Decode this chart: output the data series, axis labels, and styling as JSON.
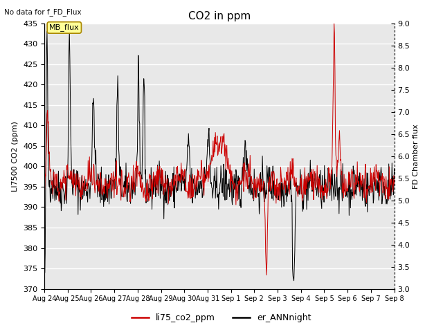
{
  "title": "CO2 in ppm",
  "top_left_text": "No data for f_FD_Flux",
  "ylabel_left": "LI7500 CO2 (ppm)",
  "ylabel_right": "FD Chamber flux",
  "ylim_left": [
    370,
    435
  ],
  "ylim_right": [
    3.0,
    9.0
  ],
  "yticks_left": [
    370,
    375,
    380,
    385,
    390,
    395,
    400,
    405,
    410,
    415,
    420,
    425,
    430,
    435
  ],
  "yticks_right": [
    3.0,
    3.5,
    4.0,
    4.5,
    5.0,
    5.5,
    6.0,
    6.5,
    7.0,
    7.5,
    8.0,
    8.5,
    9.0
  ],
  "xtick_labels": [
    "Aug 24",
    "Aug 25",
    "Aug 26",
    "Aug 27",
    "Aug 28",
    "Aug 29",
    "Aug 30",
    "Aug 31",
    "Sep 1",
    "Sep 2",
    "Sep 3",
    "Sep 4",
    "Sep 5",
    "Sep 6",
    "Sep 7",
    "Sep 8"
  ],
  "legend_entries": [
    "li75_co2_ppm",
    "er_ANNnight"
  ],
  "legend_colors": [
    "#cc0000",
    "#000000"
  ],
  "line_color_red": "#cc0000",
  "line_color_black": "#000000",
  "annotation_text": "MB_flux",
  "annotation_box_color": "#ffff99",
  "annotation_box_edge": "#aa8800",
  "background_color": "#ffffff",
  "plot_bg_color": "#e8e8e8",
  "grid_color": "#ffffff",
  "seed": 42
}
